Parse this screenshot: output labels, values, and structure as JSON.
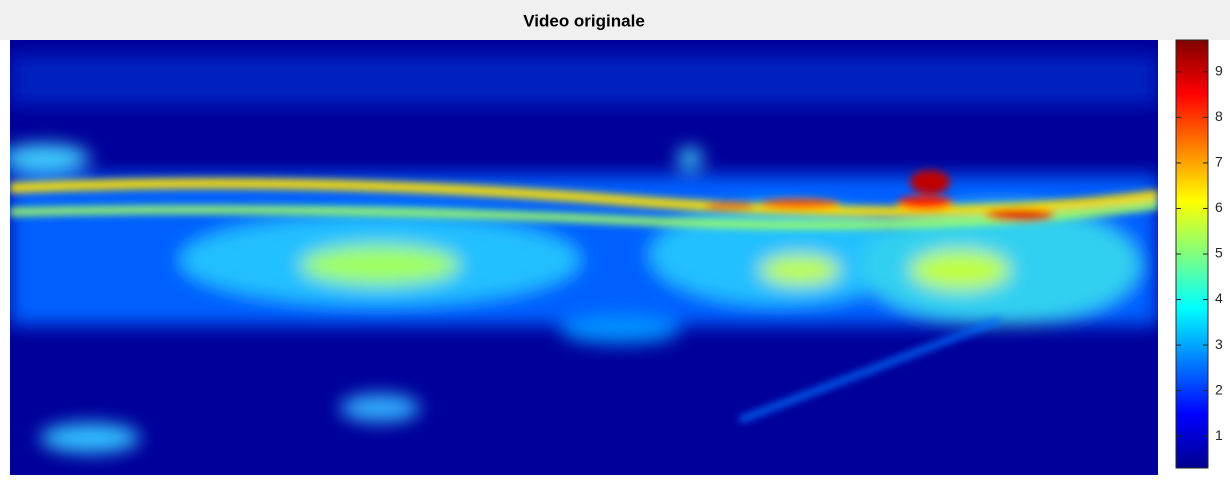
{
  "chart_data": {
    "type": "image",
    "title": "Video originale",
    "colormap": "jet",
    "clim": [
      0.3,
      9.7
    ],
    "colorbar_ticks": [
      1,
      2,
      3,
      4,
      5,
      6,
      7,
      8,
      9
    ]
  }
}
